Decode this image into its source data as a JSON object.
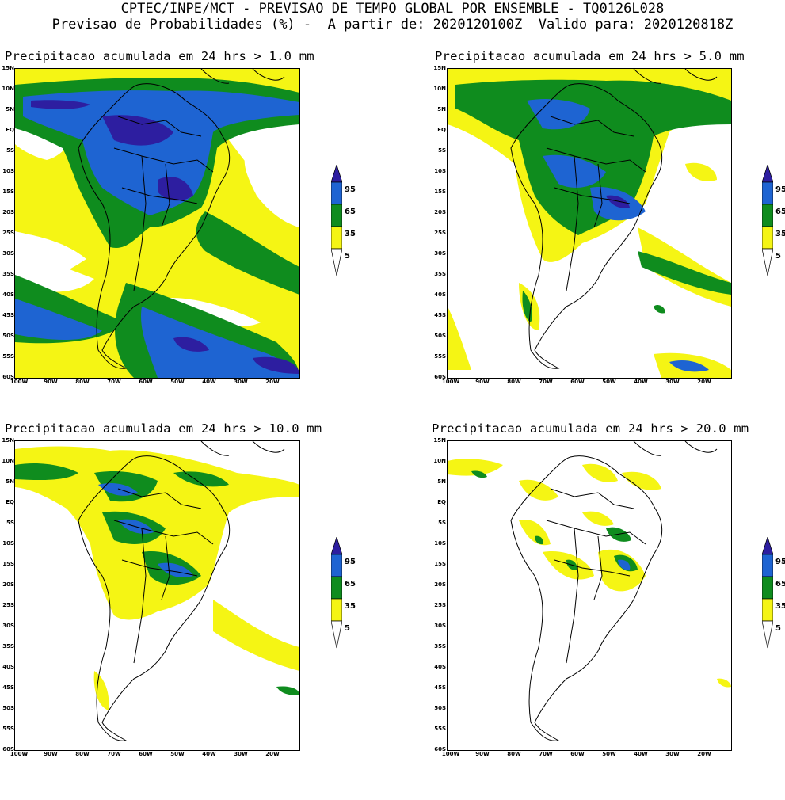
{
  "header": {
    "line1": "CPTEC/INPE/MCT - PREVISAO DE TEMPO GLOBAL POR ENSEMBLE - TQ0126L028",
    "line2": "Previsao de Probabilidades (%) -  A partir de: 2020120100Z  Valido para: 2020120818Z"
  },
  "axes": {
    "y_ticks": [
      "15N",
      "10N",
      "5N",
      "EQ",
      "5S",
      "10S",
      "15S",
      "20S",
      "25S",
      "30S",
      "35S",
      "40S",
      "45S",
      "50S",
      "55S",
      "60S"
    ],
    "x_ticks": [
      "100W",
      "90W",
      "80W",
      "70W",
      "60W",
      "50W",
      "40W",
      "30W",
      "20W"
    ]
  },
  "colorbar": {
    "levels": [
      "95",
      "65",
      "35",
      "5"
    ],
    "colors": {
      "c95": "#2d1ea0",
      "c65": "#1e64d2",
      "c35": "#0f8c1e",
      "c5": "#f5f514",
      "land_outline": "#000000"
    }
  },
  "panels": [
    {
      "title": "Precipitacao acumulada em 24 hrs > 1.0 mm",
      "threshold_mm": 1.0
    },
    {
      "title": "Precipitacao acumulada em 24 hrs > 5.0 mm",
      "threshold_mm": 5.0
    },
    {
      "title": "Precipitacao acumulada em 24 hrs > 10.0 mm",
      "threshold_mm": 10.0
    },
    {
      "title": "Precipitacao acumulada em 24 hrs > 20.0 mm",
      "threshold_mm": 20.0
    }
  ]
}
